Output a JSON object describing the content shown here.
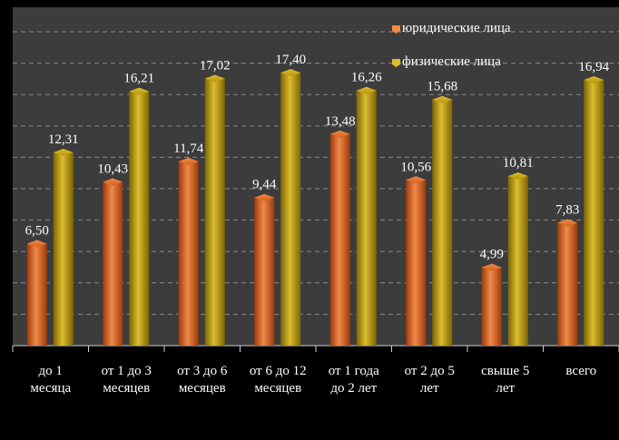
{
  "chart_data": {
    "type": "bar",
    "categories": [
      [
        "до 1",
        "месяца"
      ],
      [
        "от 1 до 3",
        "месяцев"
      ],
      [
        "от 3 до 6",
        "месяцев"
      ],
      [
        "от 6 до 12",
        "месяцев"
      ],
      [
        "от 1 года",
        "до 2 лет"
      ],
      [
        "от 2 до 5",
        "лет"
      ],
      [
        "свыше 5",
        "лет"
      ],
      [
        "всего"
      ]
    ],
    "series": [
      {
        "name": "юридические лица",
        "values": [
          6.5,
          10.43,
          11.74,
          9.44,
          13.48,
          10.56,
          4.99,
          7.83
        ],
        "labels": [
          "6,50",
          "10,43",
          "11,74",
          "9,44",
          "13,48",
          "10,56",
          "4,99",
          "7,83"
        ],
        "color": "#d9601c",
        "color_light": "#f08a4a",
        "color_dark": "#9c3a0a"
      },
      {
        "name": "физические лица",
        "values": [
          12.31,
          16.21,
          17.02,
          17.4,
          16.26,
          15.68,
          10.81,
          16.94
        ],
        "labels": [
          "12,31",
          "16,21",
          "17,02",
          "17,40",
          "16,26",
          "15,68",
          "10,81",
          "16,94"
        ],
        "color": "#b8960a",
        "color_light": "#dcbd2e",
        "color_dark": "#7d6404"
      }
    ],
    "ylim": [
      0,
      20
    ],
    "grid": true,
    "legend": "top-right",
    "plot_background": "#3c3c3c",
    "gridline_color": "#8a8a8a",
    "text_color": "#ffffff"
  }
}
